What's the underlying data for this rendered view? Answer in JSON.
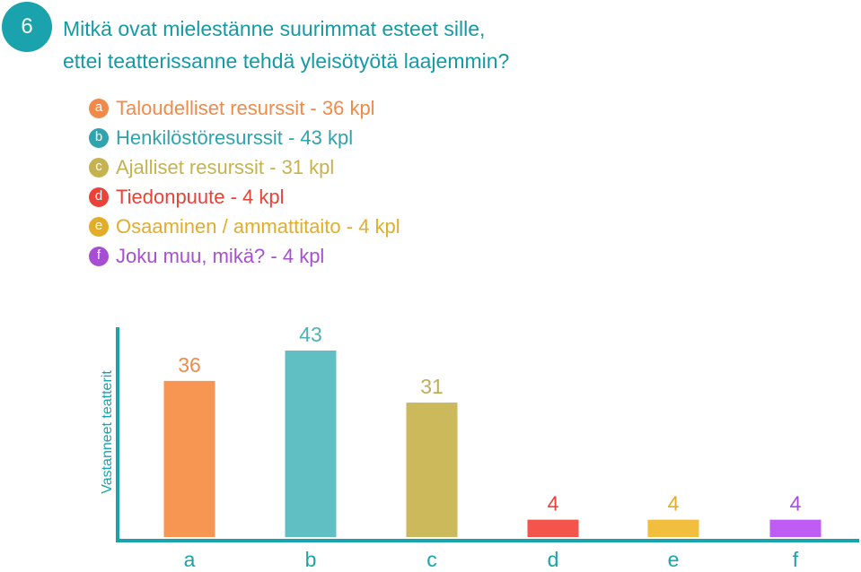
{
  "question": {
    "number": "6",
    "line1": "Mitkä ovat mielestänne suurimmat esteet sille,",
    "line2": "ettei teatterissanne  tehdä yleisötyötä laajemmin?"
  },
  "legend": [
    {
      "letter": "a",
      "text": "Taloudelliset resurssit  - 36 kpl",
      "color": "#f08a4b"
    },
    {
      "letter": "b",
      "text": "Henkilöstöresurssit  - 43 kpl",
      "color": "#2fa3ae"
    },
    {
      "letter": "c",
      "text": "Ajalliset resurssit  - 31 kpl",
      "color": "#c6b24e"
    },
    {
      "letter": "d",
      "text": "Tiedonpuute  - 4 kpl",
      "color": "#ea4236"
    },
    {
      "letter": "e",
      "text": "Osaaminen / ammattitaito  - 4 kpl",
      "color": "#e3ad2a"
    },
    {
      "letter": "f",
      "text": "Joku muu, mikä?  - 4 kpl",
      "color": "#a74fd4"
    }
  ],
  "chart_data": {
    "type": "bar",
    "categories": [
      "a",
      "b",
      "c",
      "d",
      "e",
      "f"
    ],
    "values": [
      36,
      43,
      31,
      4,
      4,
      4
    ],
    "labels": [
      "36",
      "43",
      "31",
      "4",
      "4",
      "4"
    ],
    "bar_colors": [
      "#f79553",
      "#5fbfc3",
      "#cbb95c",
      "#f4554a",
      "#f2be3e",
      "#bf5cf4"
    ],
    "label_colors": [
      "#f08a4b",
      "#4fb2b8",
      "#bfae56",
      "#ea4236",
      "#e3ad2a",
      "#a74fd4"
    ],
    "title": "",
    "xlabel": "",
    "ylabel": "Vastanneet teatterit",
    "ylim": [
      0,
      43
    ],
    "axis_color": "#1aa3ad",
    "grid": false
  }
}
